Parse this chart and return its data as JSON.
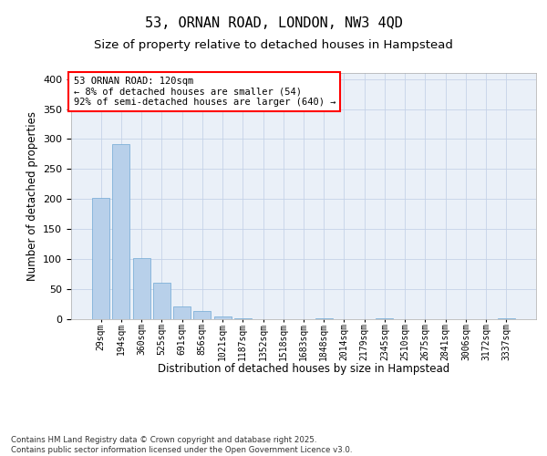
{
  "title1": "53, ORNAN ROAD, LONDON, NW3 4QD",
  "title2": "Size of property relative to detached houses in Hampstead",
  "xlabel": "Distribution of detached houses by size in Hampstead",
  "ylabel": "Number of detached properties",
  "bar_color": "#b8d0ea",
  "bar_edge_color": "#6fa8d4",
  "categories": [
    "29sqm",
    "194sqm",
    "360sqm",
    "525sqm",
    "691sqm",
    "856sqm",
    "1021sqm",
    "1187sqm",
    "1352sqm",
    "1518sqm",
    "1683sqm",
    "1848sqm",
    "2014sqm",
    "2179sqm",
    "2345sqm",
    "2510sqm",
    "2675sqm",
    "2841sqm",
    "3006sqm",
    "3172sqm",
    "3337sqm"
  ],
  "values": [
    202,
    292,
    101,
    61,
    21,
    13,
    5,
    2,
    0,
    0,
    0,
    1,
    0,
    0,
    1,
    0,
    0,
    0,
    0,
    0,
    2
  ],
  "ylim": [
    0,
    410
  ],
  "yticks": [
    0,
    50,
    100,
    150,
    200,
    250,
    300,
    350,
    400
  ],
  "annotation_text": "53 ORNAN ROAD: 120sqm\n← 8% of detached houses are smaller (54)\n92% of semi-detached houses are larger (640) →",
  "annotation_box_color": "white",
  "annotation_box_edge_color": "red",
  "bg_color": "#eaf0f8",
  "grid_color": "#c5d3e8",
  "footer_text": "Contains HM Land Registry data © Crown copyright and database right 2025.\nContains public sector information licensed under the Open Government Licence v3.0.",
  "title_fontsize": 11,
  "subtitle_fontsize": 9.5,
  "tick_fontsize": 7,
  "ylabel_fontsize": 8.5,
  "xlabel_fontsize": 8.5,
  "footer_fontsize": 6.2,
  "annotation_fontsize": 7.5
}
